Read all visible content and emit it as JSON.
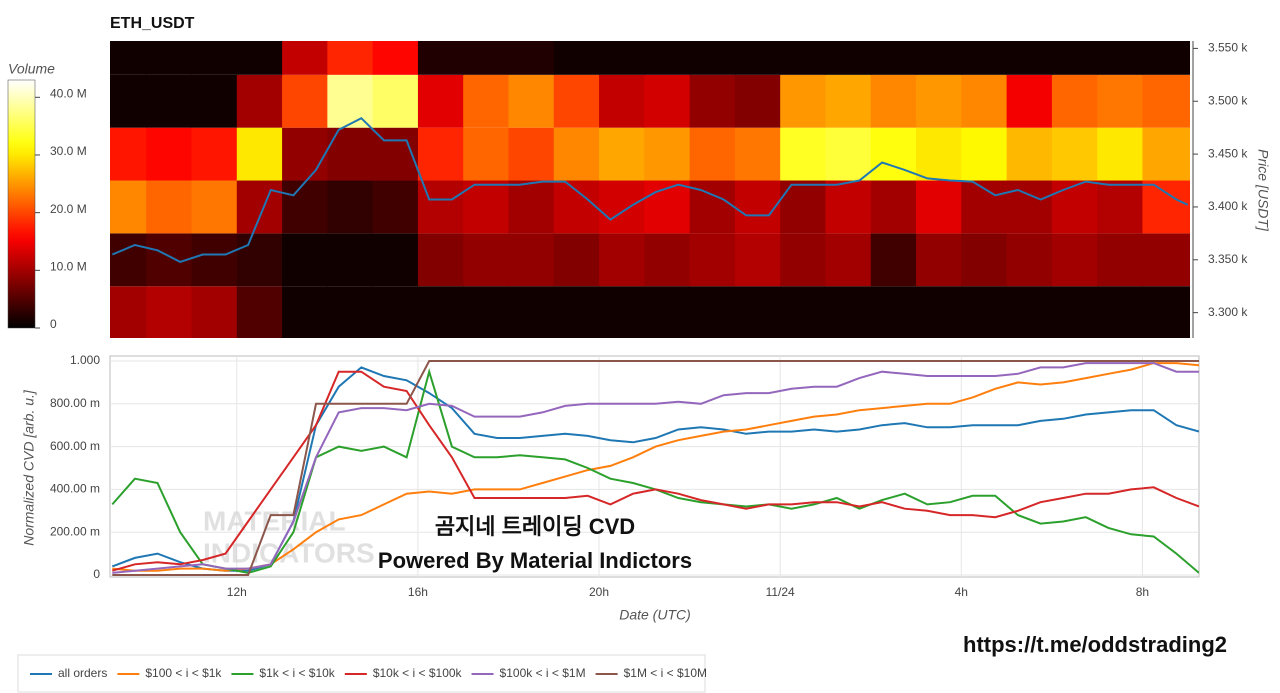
{
  "chart_data": [
    {
      "type": "heatmap",
      "title": "ETH_USDT",
      "xlim": [
        9.2,
        33.05
      ],
      "x_bins": [
        9.2,
        10,
        11,
        12,
        13,
        14,
        15,
        16,
        17,
        18,
        19,
        20,
        21,
        22,
        23,
        24,
        25,
        26,
        27,
        28,
        29,
        30,
        31,
        32,
        33.05
      ],
      "y_bins": [
        3275,
        3325,
        3375,
        3425,
        3475,
        3525,
        3575
      ],
      "z": [
        [
          10,
          11,
          10,
          5,
          1,
          1,
          1,
          1,
          1,
          1,
          1,
          1,
          1,
          1,
          1,
          1,
          1,
          1,
          1,
          1,
          1,
          1,
          1,
          1
        ],
        [
          4,
          5,
          4,
          3,
          1,
          1,
          1,
          8,
          9,
          9,
          8,
          10,
          9,
          10,
          11,
          9,
          10,
          4,
          9,
          8,
          9,
          10,
          9,
          9
        ],
        [
          24,
          22,
          23,
          10,
          4,
          3,
          4,
          11,
          12,
          10,
          12,
          13,
          14,
          10,
          12,
          9,
          12,
          10,
          14,
          10,
          10,
          12,
          11,
          18
        ],
        [
          17,
          16,
          17,
          30,
          9,
          8,
          8,
          18,
          22,
          20,
          24,
          26,
          25,
          22,
          23,
          33,
          34,
          32,
          30,
          31,
          27,
          28,
          30,
          26
        ],
        [
          1,
          1,
          1,
          10,
          20,
          38,
          36,
          14,
          22,
          24,
          20,
          12,
          13,
          9,
          8,
          25,
          26,
          24,
          25,
          24,
          15,
          22,
          23,
          22
        ],
        [
          1,
          1,
          1,
          1,
          12,
          18,
          16,
          2,
          2,
          2,
          1,
          1,
          1,
          1,
          1,
          1,
          1,
          1,
          1,
          1,
          1,
          1,
          1,
          1
        ]
      ],
      "colorscale": "hot",
      "colorbar": {
        "title": "Volume",
        "lim": [
          0,
          43
        ],
        "ticks": [
          0,
          {
            "value": 10,
            "label": "10.0 M"
          },
          {
            "value": 20,
            "label": "20.0 M"
          },
          {
            "value": 30,
            "label": "30.0 M"
          },
          {
            "value": 40,
            "label": "40.0 M"
          }
        ]
      },
      "ylim": [
        3276,
        3557
      ],
      "yticks": [
        {
          "value": 3300,
          "label": "3.300 k"
        },
        {
          "value": 3350,
          "label": "3.350 k"
        },
        {
          "value": 3400,
          "label": "3.400 k"
        },
        {
          "value": 3450,
          "label": "3.450 k"
        },
        {
          "value": 3500,
          "label": "3.500 k"
        },
        {
          "value": 3550,
          "label": "3.550 k"
        }
      ],
      "y_label": "Price [USDT]",
      "series": [
        {
          "color": "#1f77b4",
          "x": [
            9.25,
            9.75,
            10.25,
            10.75,
            11.25,
            11.75,
            12.25,
            12.75,
            13.25,
            13.75,
            14.25,
            14.75,
            15.25,
            15.75,
            16.25,
            16.75,
            17.25,
            17.75,
            18.25,
            18.75,
            19.25,
            19.75,
            20.25,
            20.75,
            21.25,
            21.75,
            22.25,
            22.75,
            23.25,
            23.75,
            24.25,
            24.75,
            25.25,
            25.75,
            26.25,
            26.75,
            27.25,
            27.75,
            28.25,
            28.75,
            29.25,
            29.75,
            30.25,
            30.75,
            31.25,
            31.75,
            32.25,
            32.75,
            33.0
          ],
          "values": [
            3355,
            3364,
            3359,
            3348,
            3355,
            3355,
            3364,
            3416,
            3411,
            3435,
            3473,
            3484,
            3463,
            3463,
            3407,
            3407,
            3421,
            3421,
            3421,
            3424,
            3424,
            3407,
            3388,
            3402,
            3414,
            3421,
            3416,
            3407,
            3392,
            3392,
            3421,
            3421,
            3421,
            3425,
            3442,
            3435,
            3427,
            3425,
            3424,
            3411,
            3416,
            3407,
            3416,
            3424,
            3421,
            3421,
            3421,
            3407,
            3402
          ]
        }
      ]
    },
    {
      "type": "line",
      "x": [
        9.25,
        9.75,
        10.25,
        10.75,
        11.25,
        11.75,
        12.25,
        12.75,
        13.25,
        13.75,
        14.25,
        14.75,
        15.25,
        15.75,
        16.25,
        16.75,
        17.25,
        17.75,
        18.25,
        18.75,
        19.25,
        19.75,
        20.25,
        20.75,
        21.25,
        21.75,
        22.25,
        22.75,
        23.25,
        23.75,
        24.25,
        24.75,
        25.25,
        25.75,
        26.25,
        26.75,
        27.25,
        27.75,
        28.25,
        28.75,
        29.25,
        29.75,
        30.25,
        30.75,
        31.25,
        31.75,
        32.25,
        32.75,
        33.25
      ],
      "xlim": [
        9.2,
        33.25
      ],
      "xticks": [
        {
          "value": 12,
          "label": "12h"
        },
        {
          "value": 16,
          "label": "16h"
        },
        {
          "value": 20,
          "label": "20h"
        },
        {
          "value": 24,
          "label": "11/24"
        },
        {
          "value": 28,
          "label": "4h"
        },
        {
          "value": 32,
          "label": "8h"
        }
      ],
      "ylim": [
        0,
        1
      ],
      "yticks": [
        0,
        {
          "value": 0.2,
          "label": "200.00 m"
        },
        {
          "value": 0.4,
          "label": "400.00 m"
        },
        {
          "value": 0.6,
          "label": "600.00 m"
        },
        {
          "value": 0.8,
          "label": "800.00 m"
        },
        {
          "value": 1,
          "label": "1.000"
        }
      ],
      "x_label": "Date (UTC)",
      "y_label": "Normalized CVD [arb. u.]",
      "grid": true,
      "legend": "bottom",
      "annotations": [
        "곰지네 트레이딩 CVD",
        "Powered By Material Indictors"
      ],
      "watermark": [
        "MATERIAL",
        "INDICATORS"
      ],
      "series": [
        {
          "name": "all orders",
          "color": "#1f77b4",
          "values": [
            0.04,
            0.08,
            0.1,
            0.06,
            0.03,
            0.02,
            0.02,
            0.05,
            0.25,
            0.7,
            0.88,
            0.97,
            0.93,
            0.91,
            0.85,
            0.78,
            0.66,
            0.64,
            0.64,
            0.65,
            0.66,
            0.65,
            0.63,
            0.62,
            0.64,
            0.68,
            0.69,
            0.68,
            0.66,
            0.67,
            0.67,
            0.68,
            0.67,
            0.68,
            0.7,
            0.71,
            0.69,
            0.69,
            0.7,
            0.7,
            0.7,
            0.72,
            0.73,
            0.75,
            0.76,
            0.77,
            0.77,
            0.7,
            0.67
          ]
        },
        {
          "name": "$100 < i < $1k",
          "color": "#ff7f0e",
          "values": [
            0.03,
            0.02,
            0.02,
            0.03,
            0.03,
            0.02,
            0.03,
            0.05,
            0.12,
            0.2,
            0.26,
            0.28,
            0.33,
            0.38,
            0.39,
            0.38,
            0.4,
            0.4,
            0.4,
            0.43,
            0.46,
            0.49,
            0.51,
            0.55,
            0.6,
            0.63,
            0.65,
            0.67,
            0.68,
            0.7,
            0.72,
            0.74,
            0.75,
            0.77,
            0.78,
            0.79,
            0.8,
            0.8,
            0.83,
            0.87,
            0.9,
            0.89,
            0.9,
            0.92,
            0.94,
            0.96,
            0.99,
            0.99,
            0.98
          ]
        },
        {
          "name": "$1k < i < $10k",
          "color": "#2ca02c",
          "values": [
            0.33,
            0.45,
            0.43,
            0.2,
            0.05,
            0.03,
            0.01,
            0.04,
            0.2,
            0.55,
            0.6,
            0.58,
            0.6,
            0.55,
            0.95,
            0.6,
            0.55,
            0.55,
            0.56,
            0.55,
            0.54,
            0.5,
            0.45,
            0.43,
            0.4,
            0.36,
            0.34,
            0.33,
            0.32,
            0.33,
            0.31,
            0.33,
            0.36,
            0.31,
            0.35,
            0.38,
            0.33,
            0.34,
            0.37,
            0.37,
            0.28,
            0.24,
            0.25,
            0.27,
            0.22,
            0.19,
            0.18,
            0.1,
            0.01
          ]
        },
        {
          "name": "$10k < i < $100k",
          "color": "#d62728",
          "values": [
            0.02,
            0.05,
            0.06,
            0.05,
            0.07,
            0.1,
            0.25,
            0.4,
            0.55,
            0.7,
            0.95,
            0.95,
            0.88,
            0.86,
            0.7,
            0.55,
            0.36,
            0.36,
            0.36,
            0.36,
            0.36,
            0.37,
            0.33,
            0.38,
            0.4,
            0.38,
            0.35,
            0.33,
            0.31,
            0.33,
            0.33,
            0.34,
            0.34,
            0.32,
            0.34,
            0.31,
            0.3,
            0.28,
            0.28,
            0.27,
            0.3,
            0.34,
            0.36,
            0.38,
            0.38,
            0.4,
            0.41,
            0.36,
            0.32
          ]
        },
        {
          "name": "$100k < i < $1M",
          "color": "#9467bd",
          "values": [
            0.01,
            0.02,
            0.03,
            0.04,
            0.05,
            0.03,
            0.03,
            0.05,
            0.25,
            0.55,
            0.76,
            0.78,
            0.78,
            0.77,
            0.8,
            0.79,
            0.74,
            0.74,
            0.74,
            0.76,
            0.79,
            0.8,
            0.8,
            0.8,
            0.8,
            0.81,
            0.8,
            0.84,
            0.85,
            0.85,
            0.87,
            0.88,
            0.88,
            0.92,
            0.95,
            0.94,
            0.93,
            0.93,
            0.93,
            0.93,
            0.94,
            0.97,
            0.97,
            0.99,
            0.99,
            0.99,
            0.99,
            0.95,
            0.95
          ]
        },
        {
          "name": "$1M < i < $10M",
          "color": "#8c564b",
          "values": [
            0,
            0,
            0,
            0,
            0,
            0,
            0,
            0.28,
            0.28,
            0.8,
            0.8,
            0.8,
            0.8,
            0.8,
            1,
            1,
            1,
            1,
            1,
            1,
            1,
            1,
            1,
            1,
            1,
            1,
            1,
            1,
            1,
            1,
            1,
            1,
            1,
            1,
            1,
            1,
            1,
            1,
            1,
            1,
            1,
            1,
            1,
            1,
            1,
            1,
            1,
            1,
            1
          ]
        }
      ]
    }
  ],
  "footer_link": "https://t.me/oddstrading2"
}
